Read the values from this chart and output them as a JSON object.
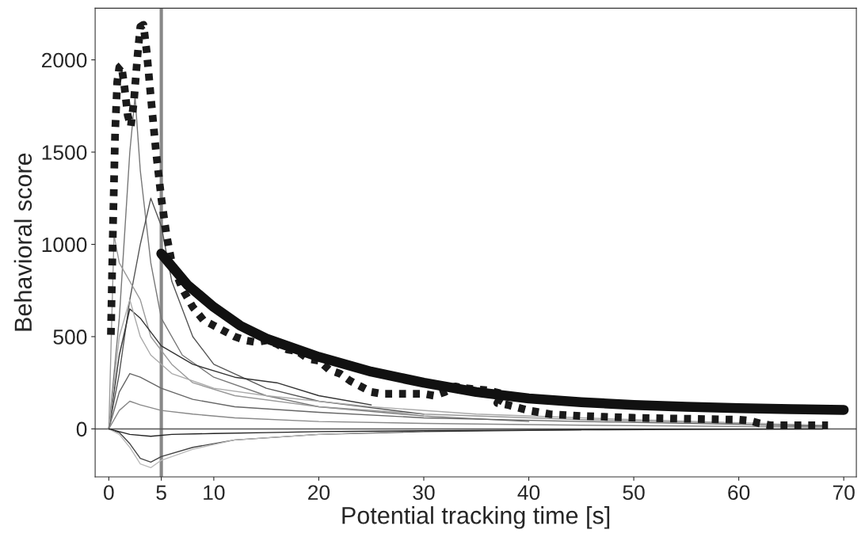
{
  "chart_data": {
    "type": "line",
    "xlabel": "Potential tracking time [s]",
    "ylabel": "Behavioral score",
    "xlim": [
      -1.3,
      71.2
    ],
    "ylim": [
      -260,
      2280
    ],
    "xticks": [
      0,
      5,
      10,
      20,
      30,
      40,
      50,
      60,
      70
    ],
    "yticks": [
      0,
      500,
      1000,
      1500,
      2000
    ],
    "grid": false,
    "ref_lines": [
      {
        "axis": "x",
        "value": 5,
        "color": "#888888"
      },
      {
        "axis": "y",
        "value": 0,
        "color": "#555555"
      }
    ],
    "series": [
      {
        "color": "#777777",
        "line_style": "solid",
        "x": [
          0,
          1,
          2,
          2.5,
          3,
          4,
          5,
          7,
          10,
          15,
          20,
          30,
          40
        ],
        "values": [
          0,
          600,
          1500,
          1800,
          1400,
          900,
          600,
          400,
          280,
          180,
          120,
          70,
          40
        ]
      },
      {
        "color": "#555555",
        "line_style": "solid",
        "x": [
          0,
          1,
          2,
          3,
          4,
          5,
          6,
          8,
          10,
          15,
          20,
          30
        ],
        "values": [
          0,
          300,
          700,
          1000,
          1250,
          1100,
          800,
          500,
          350,
          220,
          150,
          80
        ]
      },
      {
        "color": "#999999",
        "line_style": "solid",
        "x": [
          0,
          0.5,
          1,
          2,
          3,
          4,
          6,
          8,
          12,
          20,
          30,
          45,
          60
        ],
        "values": [
          0,
          1050,
          900,
          800,
          700,
          500,
          350,
          250,
          180,
          120,
          80,
          50,
          30
        ]
      },
      {
        "color": "#333333",
        "line_style": "solid",
        "x": [
          0,
          1,
          2,
          3,
          5,
          8,
          12,
          16,
          20,
          25
        ],
        "values": [
          0,
          400,
          650,
          600,
          450,
          350,
          280,
          250,
          180,
          130
        ]
      },
      {
        "color": "#aaaaaa",
        "line_style": "solid",
        "x": [
          0,
          1,
          2,
          3,
          4,
          6,
          10,
          15,
          25,
          35,
          50,
          68
        ],
        "values": [
          0,
          500,
          700,
          500,
          400,
          300,
          220,
          180,
          120,
          80,
          50,
          20
        ]
      },
      {
        "color": "#666666",
        "line_style": "solid",
        "x": [
          0,
          1,
          2,
          3,
          5,
          8,
          12,
          20,
          30,
          45,
          60,
          68
        ],
        "values": [
          0,
          200,
          300,
          280,
          220,
          160,
          120,
          90,
          60,
          40,
          25,
          15
        ]
      },
      {
        "color": "#888888",
        "line_style": "solid",
        "x": [
          0,
          1,
          2,
          3,
          5,
          8,
          12,
          20,
          30,
          45,
          68
        ],
        "values": [
          0,
          100,
          150,
          130,
          100,
          80,
          60,
          40,
          30,
          20,
          10
        ]
      },
      {
        "color": "#444444",
        "line_style": "solid",
        "x": [
          0,
          1,
          2,
          3,
          4,
          5,
          8,
          12,
          20,
          30,
          45
        ],
        "values": [
          0,
          -20,
          -80,
          -160,
          -180,
          -150,
          -100,
          -60,
          -30,
          -15,
          -5
        ]
      },
      {
        "color": "#bbbbbb",
        "line_style": "solid",
        "x": [
          0,
          1,
          2,
          3,
          4,
          5,
          8,
          12,
          20,
          30
        ],
        "values": [
          0,
          -30,
          -100,
          -190,
          -210,
          -170,
          -110,
          -60,
          -30,
          -10
        ]
      },
      {
        "color": "#222222",
        "line_style": "solid",
        "x": [
          0,
          2,
          4,
          6,
          10,
          15,
          20,
          30,
          45,
          60,
          68
        ],
        "values": [
          0,
          -30,
          -40,
          -30,
          -25,
          -20,
          -15,
          -10,
          -5,
          -2,
          0
        ]
      },
      {
        "color": "#1a1a1a",
        "line_style": "dotted",
        "x": [
          0.2,
          0.4,
          0.6,
          0.8,
          1.0,
          1.2,
          1.5,
          1.8,
          2.1,
          2.4,
          2.7,
          3.0,
          3.3,
          3.6,
          4.0,
          4.5,
          5.0,
          5.5,
          6.0,
          7.0,
          8.0,
          9.0,
          10,
          11,
          12,
          13,
          14,
          15,
          16,
          17,
          18,
          19,
          20,
          21,
          22,
          23,
          24,
          25,
          26,
          28,
          30,
          31,
          32,
          33,
          34,
          36,
          37.5,
          37,
          38,
          39,
          40,
          42,
          45,
          50,
          55,
          60,
          61,
          62,
          63,
          65,
          68.5
        ],
        "values": [
          510,
          1100,
          1600,
          1880,
          1960,
          1970,
          1850,
          1700,
          1640,
          1780,
          2000,
          2180,
          2190,
          2050,
          1800,
          1500,
          1250,
          1050,
          900,
          760,
          660,
          590,
          560,
          530,
          500,
          480,
          470,
          480,
          460,
          430,
          420,
          380,
          370,
          320,
          300,
          260,
          230,
          200,
          190,
          190,
          190,
          180,
          200,
          230,
          220,
          210,
          190,
          140,
          130,
          115,
          100,
          80,
          70,
          60,
          55,
          50,
          45,
          30,
          20,
          20,
          20
        ]
      },
      {
        "color": "#111111",
        "line_style": "solid",
        "x": [
          5,
          7.5,
          10,
          12.5,
          15,
          20,
          25,
          30,
          35,
          40,
          45,
          50,
          55,
          60,
          65,
          70
        ],
        "values": [
          950,
          780,
          660,
          560,
          490,
          390,
          310,
          250,
          200,
          165,
          145,
          130,
          120,
          112,
          107,
          103
        ]
      }
    ]
  }
}
